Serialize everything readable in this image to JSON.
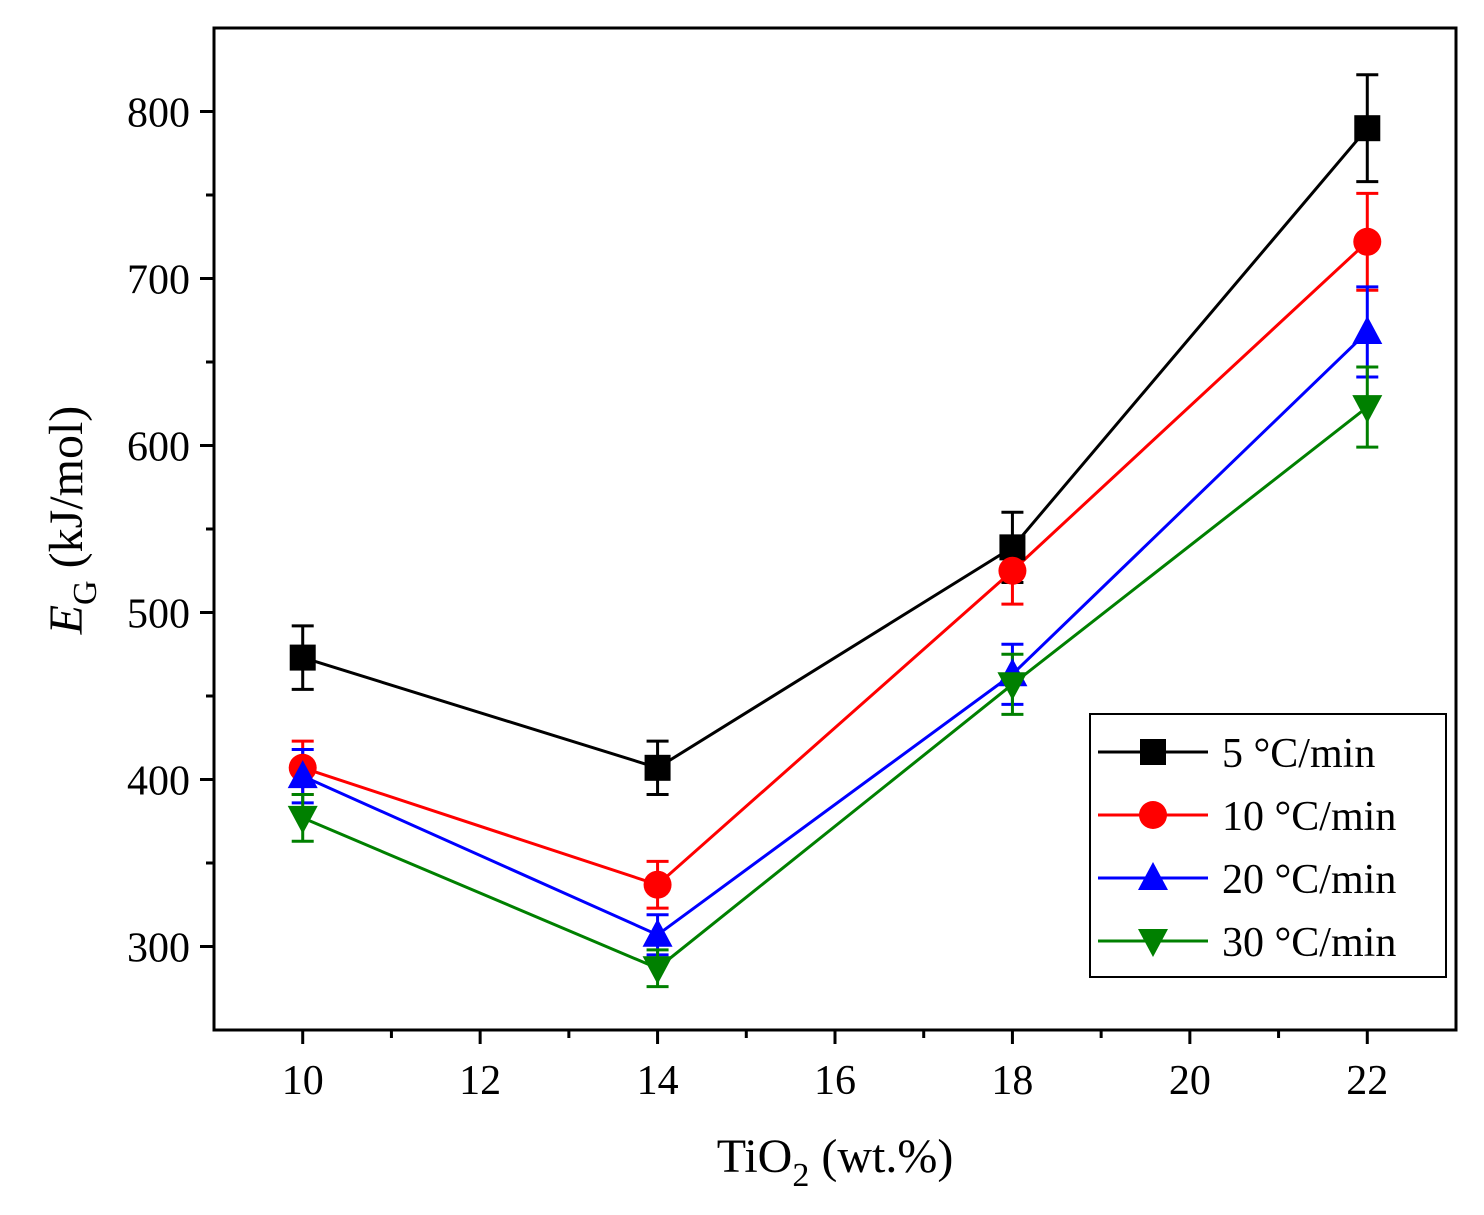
{
  "chart_data": {
    "type": "line",
    "xlabel": {
      "main": "TiO",
      "sub": "2",
      "rest": " (wt.%)"
    },
    "ylabel": {
      "main": "E",
      "sub": "G",
      "rest": " (kJ/mol)"
    },
    "xlim": [
      9,
      23
    ],
    "ylim": [
      250,
      850
    ],
    "xticks": [
      10,
      12,
      14,
      16,
      18,
      20,
      22
    ],
    "yticks": [
      300,
      400,
      500,
      600,
      700,
      800
    ],
    "x": [
      10,
      14,
      18,
      22
    ],
    "legend_position": "bottom-right",
    "grid": false,
    "series": [
      {
        "name": "5 °C/min",
        "color": "#000000",
        "marker": "square",
        "values": [
          473,
          407,
          539,
          790
        ],
        "errors": [
          19,
          16,
          21,
          32
        ]
      },
      {
        "name": "10 °C/min",
        "color": "#ff0000",
        "marker": "circle",
        "values": [
          407,
          337,
          525,
          722
        ],
        "errors": [
          16,
          14,
          20,
          29
        ]
      },
      {
        "name": "20 °C/min",
        "color": "#0000ff",
        "marker": "triangle-up",
        "values": [
          402,
          307,
          463,
          668
        ],
        "errors": [
          16,
          12,
          18,
          27
        ]
      },
      {
        "name": "30 °C/min",
        "color": "#008000",
        "marker": "triangle-down",
        "values": [
          377,
          287,
          457,
          623
        ],
        "errors": [
          14,
          11,
          18,
          24
        ]
      }
    ]
  }
}
